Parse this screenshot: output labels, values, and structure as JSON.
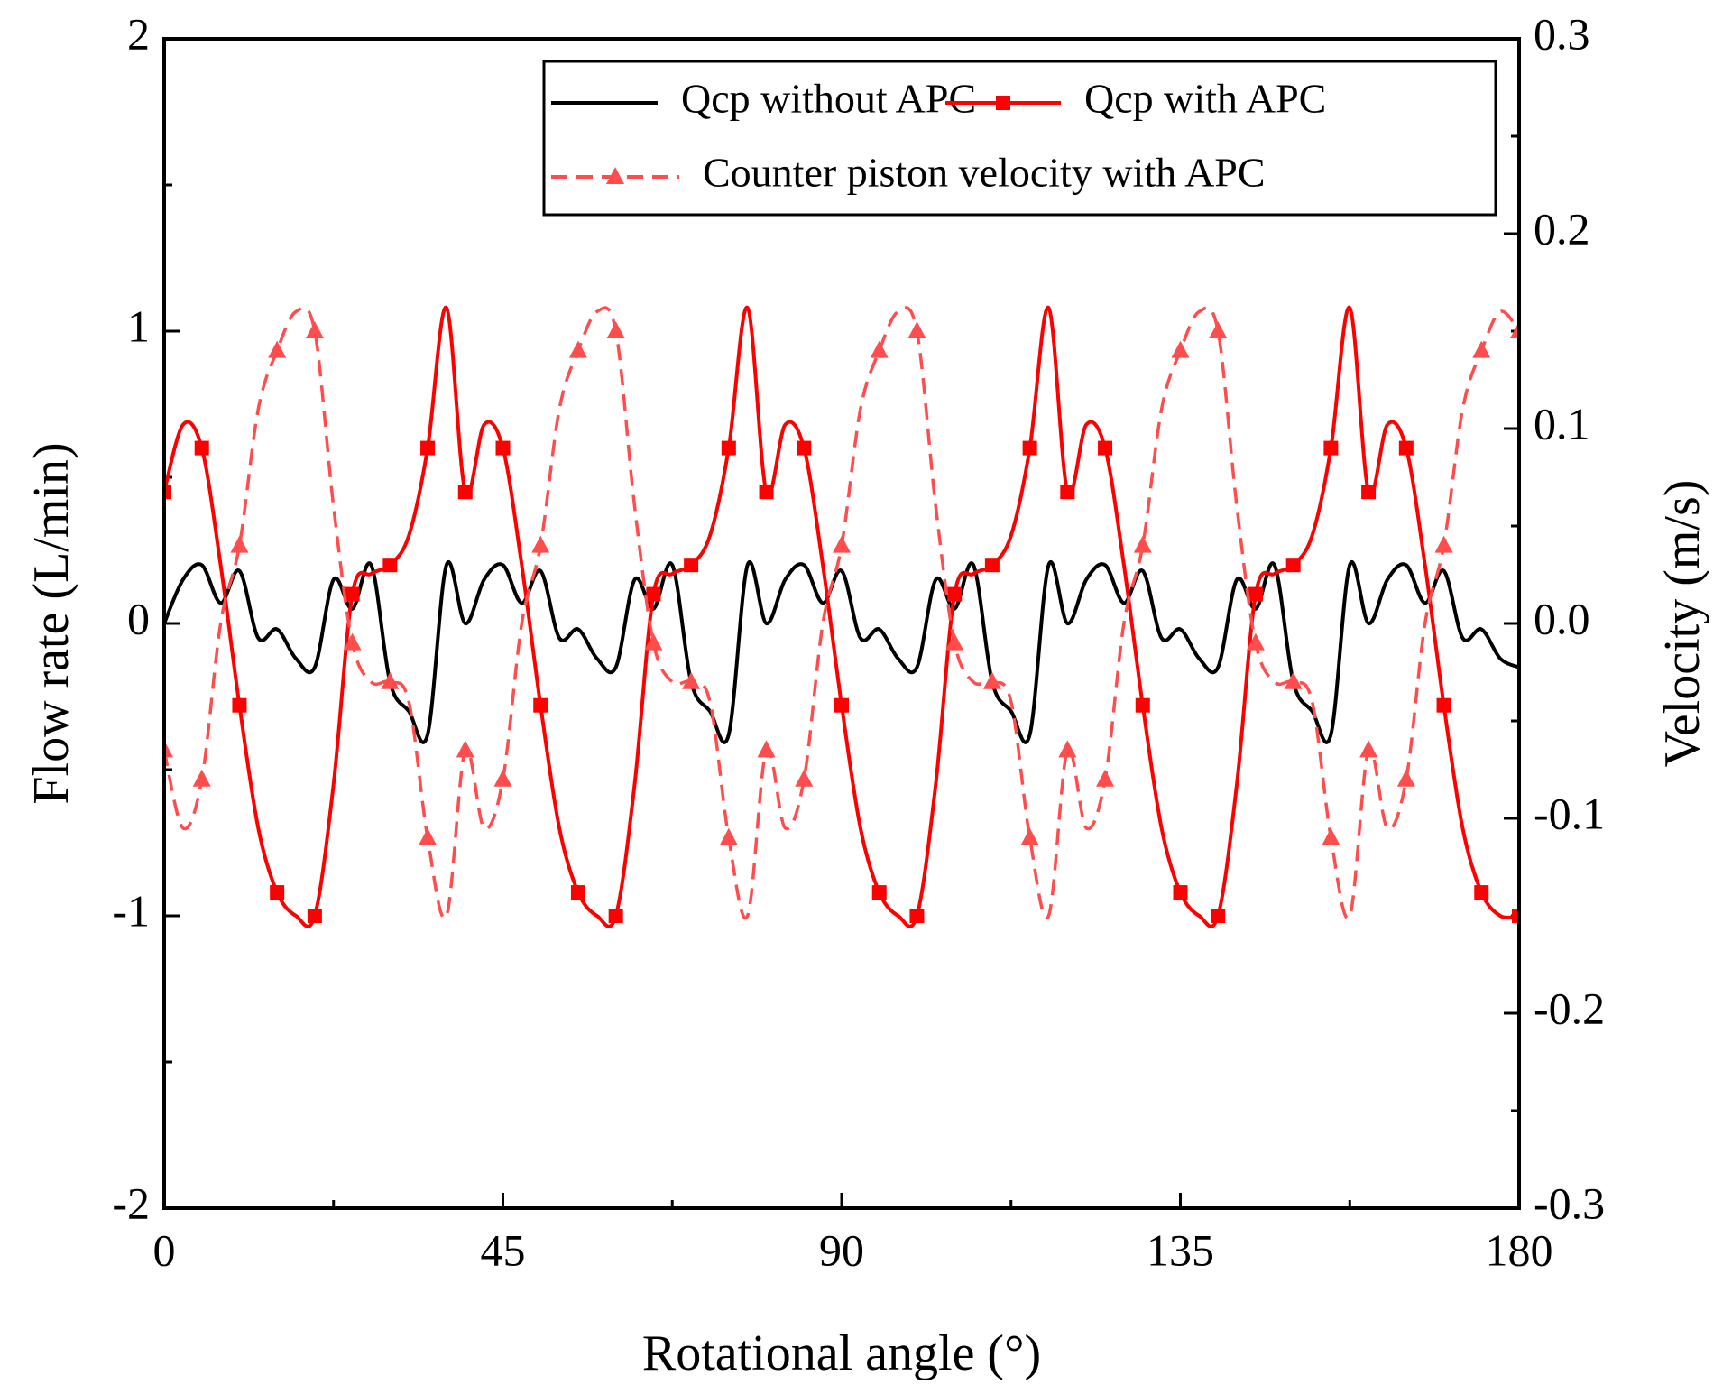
{
  "chart_data": {
    "type": "line",
    "xlabel": "Rotational angle (°)",
    "ylabel": "Flow rate (L/min)",
    "y2label": "Velocity (m/s)",
    "x": [
      0,
      2.5,
      5,
      7.5,
      10,
      12.5,
      15,
      17.5,
      20,
      22.5,
      25,
      27.5,
      30,
      32.5,
      35,
      37.5,
      40,
      42.5,
      45,
      47.5,
      50,
      52.5,
      55,
      57.5,
      60,
      62.5,
      65,
      67.5,
      70,
      72.5,
      75,
      77.5,
      80,
      82.5,
      85,
      87.5,
      90,
      92.5,
      95,
      97.5,
      100,
      102.5,
      105,
      107.5,
      110,
      112.5,
      115,
      117.5,
      120,
      122.5,
      125,
      127.5,
      130,
      132.5,
      135,
      137.5,
      140,
      142.5,
      145,
      147.5,
      150,
      152.5,
      155,
      157.5,
      160,
      162.5,
      165,
      167.5,
      170,
      172.5,
      175,
      177.5,
      180
    ],
    "series": [
      {
        "name": "Qcp without APC",
        "color": "#000000",
        "dash": false,
        "marker": "none",
        "values": [
          0.0,
          0.15,
          0.2,
          0.07,
          0.18,
          -0.05,
          -0.02,
          -0.12,
          -0.15,
          0.15,
          0.05,
          0.2,
          -0.2,
          -0.3,
          -0.38,
          0.2,
          0.0,
          0.15,
          0.2,
          0.07,
          0.18,
          -0.05,
          -0.02,
          -0.12,
          -0.15,
          0.15,
          0.05,
          0.2,
          -0.2,
          -0.3,
          -0.38,
          0.2,
          0.0,
          0.15,
          0.2,
          0.07,
          0.18,
          -0.05,
          -0.02,
          -0.12,
          -0.15,
          0.15,
          0.05,
          0.2,
          -0.2,
          -0.3,
          -0.38,
          0.2,
          0.0,
          0.15,
          0.2,
          0.07,
          0.18,
          -0.05,
          -0.02,
          -0.12,
          -0.15,
          0.15,
          0.05,
          0.2,
          -0.2,
          -0.3,
          -0.38,
          0.2,
          0.0,
          0.15,
          0.2,
          0.07,
          0.18,
          -0.05,
          -0.02,
          -0.12,
          -0.15
        ]
      },
      {
        "name": "Qcp with APC",
        "color": "#ff0000",
        "dash": false,
        "marker": "square",
        "values": [
          0.45,
          0.68,
          0.6,
          0.2,
          -0.28,
          -0.7,
          -0.92,
          -1.0,
          -1.0,
          -0.55,
          0.1,
          0.17,
          0.2,
          0.3,
          0.6,
          1.08,
          0.45,
          0.68,
          0.6,
          0.2,
          -0.28,
          -0.7,
          -0.92,
          -1.0,
          -1.0,
          -0.55,
          0.1,
          0.17,
          0.2,
          0.3,
          0.6,
          1.08,
          0.45,
          0.68,
          0.6,
          0.2,
          -0.28,
          -0.7,
          -0.92,
          -1.0,
          -1.0,
          -0.55,
          0.1,
          0.17,
          0.2,
          0.3,
          0.6,
          1.08,
          0.45,
          0.68,
          0.6,
          0.2,
          -0.28,
          -0.7,
          -0.92,
          -1.0,
          -1.0,
          -0.55,
          0.1,
          0.17,
          0.2,
          0.3,
          0.6,
          1.08,
          0.45,
          0.68,
          0.6,
          0.2,
          -0.28,
          -0.7,
          -0.92,
          -1.0,
          -1.0
        ]
      },
      {
        "name": "Counter piston velocity with APC",
        "color": "#ff4d4d",
        "dash": true,
        "marker": "triangle",
        "axis": "y2",
        "values": [
          -0.065,
          -0.105,
          -0.08,
          0.0,
          0.04,
          0.11,
          0.14,
          0.16,
          0.15,
          0.06,
          -0.01,
          -0.03,
          -0.03,
          -0.04,
          -0.11,
          -0.15,
          -0.065,
          -0.105,
          -0.08,
          0.0,
          0.04,
          0.11,
          0.14,
          0.16,
          0.15,
          0.06,
          -0.01,
          -0.03,
          -0.03,
          -0.04,
          -0.11,
          -0.15,
          -0.065,
          -0.105,
          -0.08,
          0.0,
          0.04,
          0.11,
          0.14,
          0.16,
          0.15,
          0.06,
          -0.01,
          -0.03,
          -0.03,
          -0.04,
          -0.11,
          -0.15,
          -0.065,
          -0.105,
          -0.08,
          0.0,
          0.04,
          0.11,
          0.14,
          0.16,
          0.15,
          0.06,
          -0.01,
          -0.03,
          -0.03,
          -0.04,
          -0.11,
          -0.15,
          -0.065,
          -0.105,
          -0.08,
          0.0,
          0.04,
          0.11,
          0.14,
          0.16,
          0.15
        ]
      }
    ],
    "xlim": [
      0,
      180
    ],
    "xticks": [
      0,
      45,
      90,
      135,
      180
    ],
    "ylim": [
      -2,
      2
    ],
    "yticks": [
      -2,
      -1,
      0,
      1,
      2
    ],
    "y2lim": [
      -0.3,
      0.3
    ],
    "y2ticks": [
      -0.3,
      -0.2,
      -0.1,
      {
        "value": 0,
        "label": "0.0"
      },
      0.1,
      0.2,
      0.3
    ],
    "legend": "upper right"
  }
}
